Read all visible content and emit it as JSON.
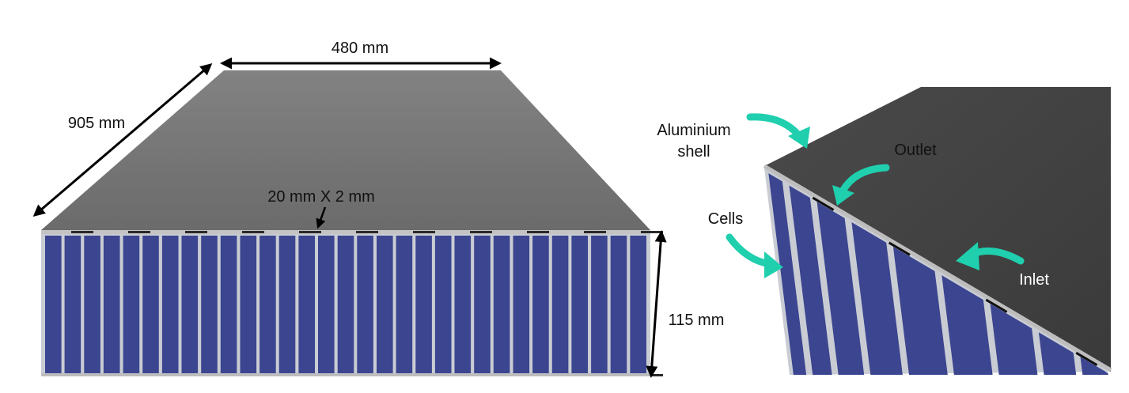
{
  "left_view": {
    "labels": {
      "width": "480 mm",
      "length": "905 mm",
      "channel": "20 mm X 2 mm",
      "height": "115 mm"
    }
  },
  "right_view": {
    "labels": {
      "shell_line1": "Aluminium",
      "shell_line2": "shell",
      "outlet": "Outlet",
      "cells": "Cells",
      "inlet": "Inlet"
    }
  },
  "colors": {
    "top_surface": "#7a7a7a",
    "top_surface_dark": "#3f3f3f",
    "cell_blue": "#3b4590",
    "cell_separator": "#cfd2d8",
    "shell_edge": "#b8b8b8",
    "arrow_teal": "#1fcfae",
    "dimension_arrow": "#000000"
  },
  "icons": {
    "dimension_arrow": "double-headed-arrow",
    "callout_arrow": "curved-teal-arrow"
  }
}
